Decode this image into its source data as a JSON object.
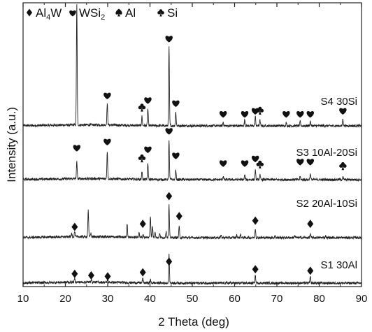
{
  "chart_data": {
    "type": "line",
    "xlabel": "2 Theta (deg)",
    "ylabel": "Intensity (a.u.)",
    "xlim": [
      10,
      90
    ],
    "x_ticks": [
      "10",
      "20",
      "30",
      "40",
      "50",
      "60",
      "70",
      "80",
      "90"
    ],
    "legend": [
      {
        "symbol": "diamond",
        "label_main": "Al",
        "label_sub": "4",
        "label_tail": "W"
      },
      {
        "symbol": "heart",
        "label_main": "WSi",
        "label_sub": "2",
        "label_tail": ""
      },
      {
        "symbol": "spade",
        "label_main": "Al",
        "label_sub": "",
        "label_tail": ""
      },
      {
        "symbol": "club",
        "label_main": "Si",
        "label_sub": "",
        "label_tail": ""
      }
    ],
    "series": [
      {
        "name": "S4 30Si",
        "offset": 3.0,
        "peaks": [
          {
            "x": 22.7,
            "h": 3.9
          },
          {
            "x": 29.9,
            "h": 0.7
          },
          {
            "x": 38.1,
            "h": 0.3
          },
          {
            "x": 39.5,
            "h": 0.55
          },
          {
            "x": 44.5,
            "h": 2.55
          },
          {
            "x": 46.1,
            "h": 0.45
          },
          {
            "x": 57.3,
            "h": 0.12
          },
          {
            "x": 62.4,
            "h": 0.2
          },
          {
            "x": 64.9,
            "h": 0.3
          },
          {
            "x": 66.0,
            "h": 0.18
          },
          {
            "x": 72.2,
            "h": 0.1
          },
          {
            "x": 75.5,
            "h": 0.14
          },
          {
            "x": 77.9,
            "h": 0.15
          },
          {
            "x": 85.6,
            "h": 0.22
          }
        ],
        "markers": [
          {
            "x": 22.7,
            "symbol": "heart",
            "y": 7.35
          },
          {
            "x": 29.9,
            "symbol": "heart",
            "y": 4.0
          },
          {
            "x": 38.1,
            "symbol": "club",
            "y": 3.6
          },
          {
            "x": 39.5,
            "symbol": "heart",
            "y": 3.85
          },
          {
            "x": 44.5,
            "symbol": "heart",
            "y": 5.85
          },
          {
            "x": 46.1,
            "symbol": "heart",
            "y": 3.75
          },
          {
            "x": 57.3,
            "symbol": "heart",
            "y": 3.4
          },
          {
            "x": 62.4,
            "symbol": "heart",
            "y": 3.4
          },
          {
            "x": 64.9,
            "symbol": "heart",
            "y": 3.5
          },
          {
            "x": 66.0,
            "symbol": "club",
            "y": 3.5
          },
          {
            "x": 72.2,
            "symbol": "heart",
            "y": 3.4
          },
          {
            "x": 75.5,
            "symbol": "heart",
            "y": 3.4
          },
          {
            "x": 77.9,
            "symbol": "heart",
            "y": 3.4
          },
          {
            "x": 85.6,
            "symbol": "heart",
            "y": 3.5
          }
        ]
      },
      {
        "name": "S3 10Al-20Si",
        "offset": 2.0,
        "peaks": [
          {
            "x": 22.7,
            "h": 0.55
          },
          {
            "x": 29.9,
            "h": 0.9
          },
          {
            "x": 38.1,
            "h": 0.25
          },
          {
            "x": 39.5,
            "h": 0.5
          },
          {
            "x": 44.5,
            "h": 1.25
          },
          {
            "x": 46.1,
            "h": 0.3
          },
          {
            "x": 57.3,
            "h": 0.1
          },
          {
            "x": 62.4,
            "h": 0.15
          },
          {
            "x": 64.9,
            "h": 0.3
          },
          {
            "x": 66.0,
            "h": 0.15
          },
          {
            "x": 75.5,
            "h": 0.1
          },
          {
            "x": 77.9,
            "h": 0.2
          },
          {
            "x": 85.6,
            "h": 0.08
          }
        ],
        "markers": [
          {
            "x": 22.7,
            "symbol": "heart",
            "y": 3.05
          },
          {
            "x": 29.9,
            "symbol": "heart",
            "y": 3.25
          },
          {
            "x": 38.1,
            "symbol": "club",
            "y": 2.7
          },
          {
            "x": 39.5,
            "symbol": "heart",
            "y": 3.0
          },
          {
            "x": 44.5,
            "symbol": "heart",
            "y": 3.6
          },
          {
            "x": 46.1,
            "symbol": "heart",
            "y": 2.8
          },
          {
            "x": 57.3,
            "symbol": "heart",
            "y": 2.55
          },
          {
            "x": 62.4,
            "symbol": "heart",
            "y": 2.55
          },
          {
            "x": 64.9,
            "symbol": "heart",
            "y": 2.7
          },
          {
            "x": 66.0,
            "symbol": "club",
            "y": 2.5
          },
          {
            "x": 75.5,
            "symbol": "heart",
            "y": 2.6
          },
          {
            "x": 77.9,
            "symbol": "heart",
            "y": 2.6
          },
          {
            "x": 85.6,
            "symbol": "club",
            "y": 2.45
          }
        ]
      },
      {
        "name": "S2 20Al-10Si",
        "offset": 1.0,
        "peaks": [
          {
            "x": 21.5,
            "h": 0.12
          },
          {
            "x": 22.2,
            "h": 0.18
          },
          {
            "x": 25.4,
            "h": 0.85
          },
          {
            "x": 26.0,
            "h": 0.12
          },
          {
            "x": 34.6,
            "h": 0.45
          },
          {
            "x": 37.4,
            "h": 0.18
          },
          {
            "x": 38.4,
            "h": 0.1
          },
          {
            "x": 40.1,
            "h": 0.7
          },
          {
            "x": 40.6,
            "h": 0.35
          },
          {
            "x": 41.2,
            "h": 0.2
          },
          {
            "x": 42.3,
            "h": 0.12
          },
          {
            "x": 43.8,
            "h": 0.2
          },
          {
            "x": 44.5,
            "h": 1.05
          },
          {
            "x": 46.9,
            "h": 0.35
          },
          {
            "x": 56.8,
            "h": 0.06
          },
          {
            "x": 60.5,
            "h": 0.08
          },
          {
            "x": 61.4,
            "h": 0.1
          },
          {
            "x": 64.9,
            "h": 0.3
          },
          {
            "x": 69.5,
            "h": 0.06
          },
          {
            "x": 74.2,
            "h": 0.08
          },
          {
            "x": 77.9,
            "h": 0.12
          },
          {
            "x": 81.5,
            "h": 0.06
          }
        ],
        "markers": [
          {
            "x": 22.2,
            "symbol": "diamond",
            "y": 1.35
          },
          {
            "x": 38.3,
            "symbol": "diamond",
            "y": 1.45
          },
          {
            "x": 44.5,
            "symbol": "diamond",
            "y": 2.35
          },
          {
            "x": 46.9,
            "symbol": "diamond",
            "y": 1.7
          },
          {
            "x": 64.9,
            "symbol": "diamond",
            "y": 1.55
          },
          {
            "x": 77.9,
            "symbol": "diamond",
            "y": 1.45
          }
        ]
      },
      {
        "name": "S1 30Al",
        "offset": 0.0,
        "peaks": [
          {
            "x": 22.2,
            "h": 0.12
          },
          {
            "x": 26.1,
            "h": 0.1
          },
          {
            "x": 30.0,
            "h": 0.08
          },
          {
            "x": 38.3,
            "h": 0.15
          },
          {
            "x": 40.1,
            "h": 0.1
          },
          {
            "x": 44.5,
            "h": 0.95
          },
          {
            "x": 64.9,
            "h": 0.25
          },
          {
            "x": 77.9,
            "h": 0.2
          }
        ],
        "markers": [
          {
            "x": 22.2,
            "symbol": "diamond",
            "y": 0.3
          },
          {
            "x": 26.1,
            "symbol": "diamond",
            "y": 0.25
          },
          {
            "x": 30.0,
            "symbol": "diamond",
            "y": 0.22
          },
          {
            "x": 38.3,
            "symbol": "diamond",
            "y": 0.35
          },
          {
            "x": 44.5,
            "symbol": "diamond",
            "y": 0.7
          },
          {
            "x": 64.9,
            "symbol": "diamond",
            "y": 0.45
          },
          {
            "x": 77.9,
            "symbol": "diamond",
            "y": 0.4
          }
        ]
      }
    ]
  }
}
